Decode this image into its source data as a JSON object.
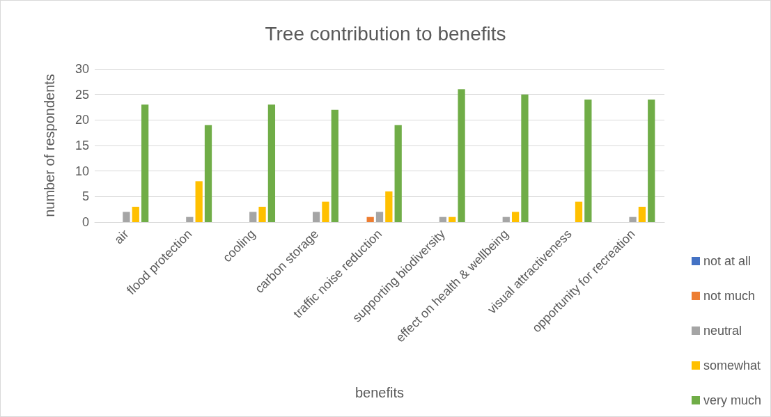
{
  "chart_data": {
    "type": "bar",
    "title": "Tree contribution to benefits",
    "xlabel": "benefits",
    "ylabel": "number of respondents",
    "categories": [
      "air",
      "flood protection",
      "cooling",
      "carbon storage",
      "traffic noise reduction",
      "supporting biodiversity",
      "effect on health & wellbeing",
      "visual attractiveness",
      "opportunity for recreation"
    ],
    "series": [
      {
        "name": "not at all",
        "color": "#4472c4",
        "values": [
          0,
          0,
          0,
          0,
          0,
          0,
          0,
          0,
          0
        ]
      },
      {
        "name": "not much",
        "color": "#ed7d31",
        "values": [
          0,
          0,
          0,
          0,
          1,
          0,
          0,
          0,
          0
        ]
      },
      {
        "name": "neutral",
        "color": "#a5a5a5",
        "values": [
          2,
          1,
          2,
          2,
          2,
          1,
          1,
          0,
          1
        ]
      },
      {
        "name": "somewhat",
        "color": "#ffc000",
        "values": [
          3,
          8,
          3,
          4,
          6,
          1,
          2,
          4,
          3
        ]
      },
      {
        "name": "very much",
        "color": "#70ad47",
        "values": [
          23,
          19,
          23,
          22,
          19,
          26,
          25,
          24,
          24
        ]
      }
    ],
    "ylim": [
      0,
      30
    ],
    "yticks": [
      0,
      5,
      10,
      15,
      20,
      25,
      30
    ],
    "grid": "y",
    "legend": "right"
  }
}
